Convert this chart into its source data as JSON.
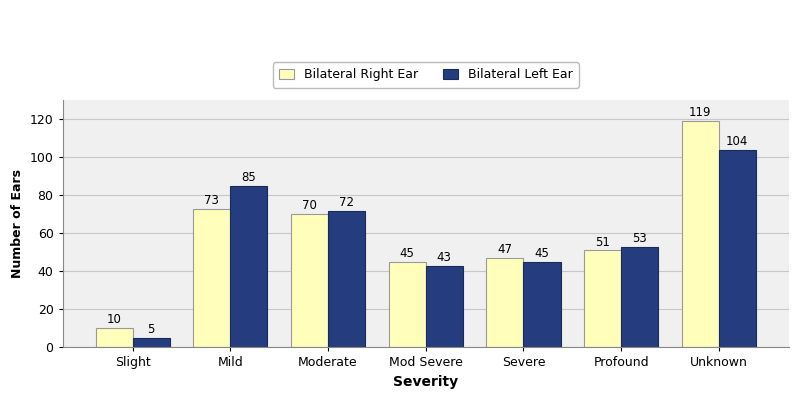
{
  "categories": [
    "Slight",
    "Mild",
    "Moderate",
    "Mod Severe",
    "Severe",
    "Profound",
    "Unknown"
  ],
  "right_ear": [
    10,
    73,
    70,
    45,
    47,
    51,
    119
  ],
  "left_ear": [
    5,
    85,
    72,
    43,
    45,
    53,
    104
  ],
  "right_color": "#FFFFBB",
  "left_color": "#253D7F",
  "xlabel": "Severity",
  "ylabel": "Number of Ears",
  "legend_right": "Bilateral Right Ear",
  "legend_left": "Bilateral Left Ear",
  "ylim": [
    0,
    130
  ],
  "yticks": [
    0,
    20,
    40,
    60,
    80,
    100,
    120
  ],
  "bar_width": 0.38,
  "background_color": "#ffffff",
  "plot_bg_color": "#f0f0f0",
  "grid_color": "#c8c8c8"
}
